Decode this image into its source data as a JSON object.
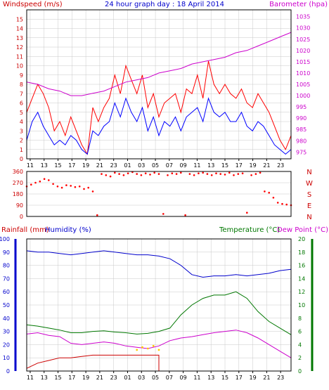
{
  "title": "24 hour graph day : 18 April 2014",
  "colors": {
    "frame": "#000000",
    "grid": "#c8c8c8",
    "wind_speed": "#ff0000",
    "wind_gust": "#ff0000",
    "wind_avg": "#0000ff",
    "barometer": "#cc00cc",
    "direction": "#ff0000",
    "humidity": "#0000cc",
    "temperature": "#007700",
    "dewpoint": "#cc00cc",
    "rainfall": "#cc0000",
    "solar": "#ffcc00",
    "label_red": "#cc0000",
    "label_blue": "#0000cc",
    "label_purple": "#cc00cc",
    "label_green": "#007700"
  },
  "chart_data": [
    {
      "type": "line",
      "panel": "wind_barometer",
      "left_axis_label": "Windspeed (m/s)",
      "right_axis_label": "Barometer (hpa)",
      "left_ticks": [
        0,
        1,
        2,
        3,
        4,
        5,
        6,
        7,
        8,
        9,
        10,
        11,
        12,
        13,
        14,
        15
      ],
      "right_ticks": [
        975,
        980,
        985,
        990,
        995,
        1000,
        1005,
        1010,
        1015,
        1020,
        1025,
        1030,
        1035
      ],
      "x_tick_labels": [
        "11",
        "13",
        "15",
        "17",
        "19",
        "21",
        "23",
        "01",
        "03",
        "05",
        "07",
        "09",
        "11",
        "13",
        "15",
        "17",
        "19",
        "21",
        "23"
      ],
      "ylim_left": [
        0,
        16
      ],
      "ylim_right": [
        972,
        1038
      ],
      "grid": true,
      "series": [
        {
          "key": "gust",
          "x": [
            0,
            0.5,
            1,
            1.5,
            2,
            2.5,
            3,
            3.5,
            4,
            4.5,
            5,
            5.5,
            6,
            6.5,
            7,
            7.5,
            8,
            8.5,
            9,
            9.5,
            10,
            10.5,
            11,
            11.5,
            12,
            12.5,
            13,
            13.5,
            14,
            14.5,
            15,
            15.5,
            16,
            16.5,
            17,
            17.5,
            18,
            18.5,
            19,
            19.5,
            20,
            20.5,
            21,
            21.5,
            22,
            22.5,
            23,
            23.5,
            24
          ],
          "y": [
            5,
            6.5,
            8,
            7,
            5.5,
            3,
            4,
            2.5,
            4.5,
            3,
            1.5,
            0.5,
            5.5,
            4,
            5.5,
            6.5,
            9,
            7,
            10,
            8.5,
            7,
            9,
            5.5,
            7,
            4.5,
            6,
            6.5,
            7,
            5,
            7.5,
            7,
            9,
            6.5,
            10.5,
            8,
            7,
            8,
            7,
            6.5,
            7.5,
            6,
            5.5,
            7,
            6,
            5,
            3.5,
            2,
            1,
            2.5
          ]
        },
        {
          "key": "average",
          "x": [
            0,
            0.5,
            1,
            1.5,
            2,
            2.5,
            3,
            3.5,
            4,
            4.5,
            5,
            5.5,
            6,
            6.5,
            7,
            7.5,
            8,
            8.5,
            9,
            9.5,
            10,
            10.5,
            11,
            11.5,
            12,
            12.5,
            13,
            13.5,
            14,
            14.5,
            15,
            15.5,
            16,
            16.5,
            17,
            17.5,
            18,
            18.5,
            19,
            19.5,
            20,
            20.5,
            21,
            21.5,
            22,
            22.5,
            23,
            23.5,
            24
          ],
          "y": [
            2,
            4,
            5,
            3.5,
            2.5,
            1.5,
            2,
            1.5,
            2.5,
            2,
            1,
            0.5,
            3,
            2.5,
            3.5,
            4,
            6,
            4.5,
            6.5,
            5,
            4,
            5.5,
            3,
            4.5,
            2.5,
            4,
            3.5,
            4.5,
            3,
            4.5,
            5,
            5.5,
            4,
            6.5,
            5,
            4.5,
            5,
            4,
            4,
            5,
            3.5,
            3,
            4,
            3.5,
            2.5,
            1.5,
            1,
            0.5,
            1
          ]
        },
        {
          "key": "barometer",
          "axis": "right",
          "x": [
            0,
            1,
            2,
            3,
            4,
            5,
            6,
            7,
            8,
            9,
            10,
            11,
            12,
            13,
            14,
            15,
            16,
            17,
            18,
            19,
            20,
            21,
            22,
            23,
            24
          ],
          "y": [
            1006,
            1005,
            1003,
            1002,
            1000,
            1000,
            1001,
            1002,
            1004,
            1006,
            1007,
            1008,
            1010,
            1011,
            1012,
            1014,
            1015,
            1016,
            1017,
            1019,
            1020,
            1022,
            1024,
            1026,
            1028
          ]
        }
      ]
    },
    {
      "type": "scatter",
      "panel": "wind_direction",
      "left_ticks": [
        0,
        90,
        180,
        270,
        360
      ],
      "right_labels": [
        "N",
        "W",
        "S",
        "E",
        "N"
      ],
      "ylim": [
        0,
        360
      ],
      "series": [
        {
          "key": "direction",
          "x": [
            0,
            0.4,
            0.8,
            1.2,
            1.6,
            2,
            2.4,
            2.8,
            3.2,
            3.6,
            4,
            4.4,
            4.8,
            5.2,
            5.6,
            6,
            6.4,
            6.8,
            7.2,
            7.6,
            8,
            8.4,
            8.8,
            9.2,
            9.6,
            10,
            10.4,
            10.8,
            11.2,
            11.6,
            12,
            12.4,
            12.8,
            13.2,
            13.6,
            14,
            14.4,
            14.8,
            15.2,
            15.6,
            16,
            16.4,
            16.8,
            17.2,
            17.6,
            18,
            18.4,
            18.8,
            19.2,
            19.6,
            20,
            20.4,
            20.8,
            21.2,
            21.6,
            22,
            22.4,
            22.8,
            23.2,
            23.6,
            24
          ],
          "y": [
            240,
            255,
            270,
            280,
            300,
            290,
            260,
            240,
            230,
            250,
            245,
            235,
            240,
            220,
            230,
            200,
            10,
            340,
            330,
            320,
            350,
            340,
            330,
            345,
            355,
            340,
            330,
            345,
            335,
            350,
            340,
            20,
            330,
            345,
            340,
            350,
            10,
            340,
            330,
            345,
            350,
            340,
            330,
            345,
            340,
            335,
            350,
            330,
            340,
            345,
            30,
            330,
            340,
            350,
            200,
            190,
            150,
            110,
            100,
            95,
            90
          ]
        }
      ]
    },
    {
      "type": "line",
      "panel": "humidity_temperature",
      "left_axis_label": "Rainfall (mm)",
      "left_axis_label2": "Humidity (%)",
      "right_axis_label": "Temperature (°C)",
      "right_axis_label2": "Dew Point (°C)",
      "left_ticks": [
        0,
        10,
        20,
        30,
        40,
        50,
        60,
        70,
        80,
        90,
        100
      ],
      "right_ticks": [
        0,
        2,
        4,
        6,
        8,
        10,
        12,
        14,
        16,
        18,
        20
      ],
      "x_tick_labels": [
        "11",
        "13",
        "15",
        "17",
        "19",
        "21",
        "23",
        "01",
        "03",
        "05",
        "07",
        "09",
        "11",
        "13",
        "15",
        "17",
        "19",
        "21",
        "23"
      ],
      "ylim_left": [
        0,
        100
      ],
      "ylim_right": [
        0,
        20
      ],
      "grid": true,
      "series": [
        {
          "key": "humidity",
          "axis": "left",
          "x": [
            0,
            1,
            2,
            3,
            4,
            5,
            6,
            7,
            8,
            9,
            10,
            11,
            12,
            13,
            14,
            15,
            16,
            17,
            18,
            19,
            20,
            21,
            22,
            23,
            24
          ],
          "y": [
            91,
            90,
            90,
            89,
            88,
            89,
            90,
            91,
            90,
            89,
            88,
            88,
            87,
            85,
            80,
            73,
            71,
            72,
            72,
            73,
            72,
            73,
            74,
            76,
            77
          ]
        },
        {
          "key": "temperature",
          "axis": "right",
          "x": [
            0,
            1,
            2,
            3,
            4,
            5,
            6,
            7,
            8,
            9,
            10,
            11,
            12,
            13,
            14,
            15,
            16,
            17,
            18,
            19,
            20,
            21,
            22,
            23,
            24
          ],
          "y": [
            7,
            6.8,
            6.5,
            6.2,
            5.8,
            5.8,
            6,
            6.1,
            5.9,
            5.8,
            5.6,
            5.7,
            6,
            6.5,
            8.5,
            10,
            11,
            11.5,
            11.5,
            12,
            11,
            9,
            7.5,
            6.5,
            5.5
          ]
        },
        {
          "key": "dewpoint",
          "axis": "right",
          "x": [
            0,
            1,
            2,
            3,
            4,
            5,
            6,
            7,
            8,
            9,
            10,
            11,
            12,
            13,
            14,
            15,
            16,
            17,
            18,
            19,
            20,
            21,
            22,
            23,
            24
          ],
          "y": [
            5.6,
            5.8,
            5.4,
            5.2,
            4.2,
            4.0,
            4.2,
            4.4,
            4.2,
            3.8,
            3.6,
            3.4,
            3.8,
            4.6,
            5.0,
            5.2,
            5.5,
            5.8,
            6.0,
            6.2,
            5.8,
            5.0,
            4.0,
            3.0,
            2.0
          ]
        },
        {
          "key": "rainfall",
          "axis": "left",
          "x": [
            0,
            1,
            2,
            3,
            4,
            5,
            6,
            7,
            8,
            9,
            10,
            11,
            12,
            12.001,
            13,
            14,
            15,
            16,
            17,
            18,
            19,
            20,
            21,
            22,
            23,
            24
          ],
          "y": [
            2,
            6,
            8,
            10,
            10,
            11,
            12,
            12,
            12,
            12,
            12,
            12,
            12,
            0,
            0,
            0,
            0,
            0,
            0,
            0,
            0,
            0,
            0,
            0,
            0,
            0
          ]
        },
        {
          "key": "solar",
          "axis": "left",
          "x": [
            10,
            10.5,
            11,
            11.5,
            12
          ],
          "y": [
            16,
            18,
            17,
            19,
            16
          ]
        }
      ]
    }
  ]
}
